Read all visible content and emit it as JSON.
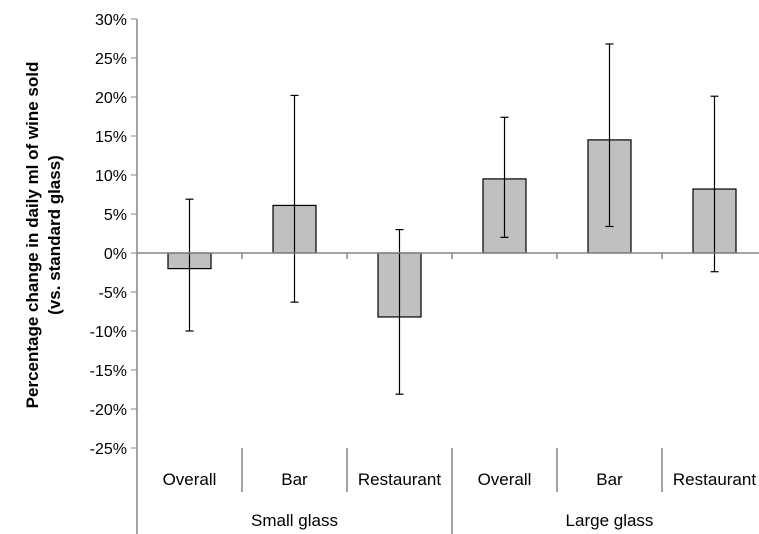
{
  "chart_data": {
    "type": "bar",
    "title": "",
    "ylabel_lines": [
      "Percentage change in daily ml of wine sold",
      "(vs. standard glass)"
    ],
    "xlabel": "",
    "ylim": [
      -25,
      30
    ],
    "ytick_step": 5,
    "ytick_labels": [
      "-25%",
      "-20%",
      "-15%",
      "-10%",
      "-5%",
      "0%",
      "5%",
      "10%",
      "15%",
      "20%",
      "25%",
      "30%"
    ],
    "grid": false,
    "groups": [
      {
        "label": "Small glass",
        "categories": [
          "Overall",
          "Bar",
          "Restaurant"
        ]
      },
      {
        "label": "Large glass",
        "categories": [
          "Overall",
          "Bar",
          "Restaurant"
        ]
      }
    ],
    "categories": [
      "Overall",
      "Bar",
      "Restaurant",
      "Overall",
      "Bar",
      "Restaurant"
    ],
    "values": [
      -2.0,
      6.1,
      -8.2,
      9.5,
      14.5,
      8.2
    ],
    "error_low": [
      -10.0,
      -6.3,
      -18.1,
      2.0,
      3.4,
      -2.4
    ],
    "error_high": [
      6.9,
      20.2,
      3.0,
      17.4,
      26.8,
      20.1
    ],
    "bar_color": "#c0c0c0",
    "bar_edge_color": "#000000",
    "axis_color": "#868686"
  }
}
